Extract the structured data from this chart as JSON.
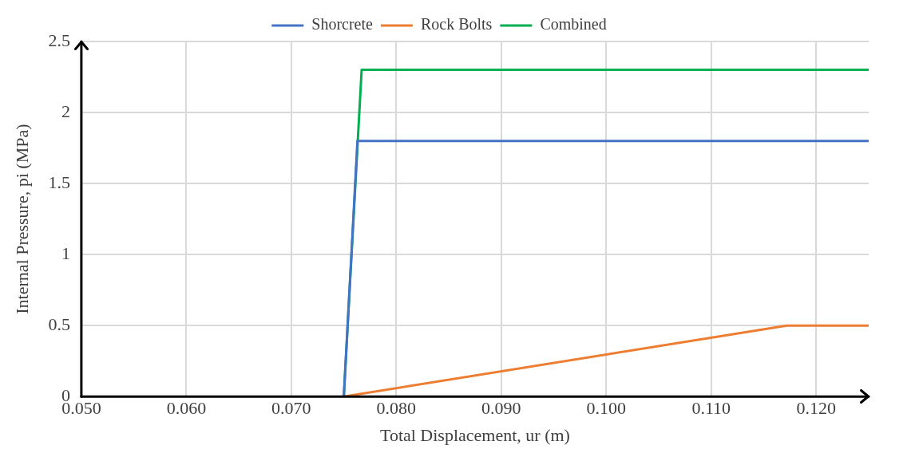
{
  "chart_data": {
    "type": "line",
    "xlabel": "Total Displacement, ur (m)",
    "ylabel": "Internal Pressure, pi (MPa)",
    "xlim": [
      0.05,
      0.125
    ],
    "ylim": [
      0,
      2.5
    ],
    "xticks": [
      {
        "value": 0.05,
        "label": "0.050"
      },
      {
        "value": 0.06,
        "label": "0.060"
      },
      {
        "value": 0.07,
        "label": "0.070"
      },
      {
        "value": 0.08,
        "label": "0.080"
      },
      {
        "value": 0.09,
        "label": "0.090"
      },
      {
        "value": 0.1,
        "label": "0.100"
      },
      {
        "value": 0.11,
        "label": "0.110"
      },
      {
        "value": 0.12,
        "label": "0.120"
      }
    ],
    "yticks": [
      0,
      0.5,
      1,
      1.5,
      2,
      2.5
    ],
    "grid": true,
    "legend": "top",
    "marker": "none",
    "line_style": "solid",
    "series": [
      {
        "name": "Shorcrete",
        "color": "#4472c4",
        "x": [
          0.075,
          0.0763,
          0.125
        ],
        "values": [
          0,
          1.8,
          1.8
        ]
      },
      {
        "name": "Rock Bolts",
        "color": "#ed7d31",
        "x": [
          0.075,
          0.1172,
          0.125
        ],
        "values": [
          0,
          0.5,
          0.5
        ]
      },
      {
        "name": "Combined",
        "color": "#00b050",
        "x": [
          0.075,
          0.0767,
          0.125
        ],
        "values": [
          0,
          2.3,
          2.3
        ]
      }
    ]
  }
}
